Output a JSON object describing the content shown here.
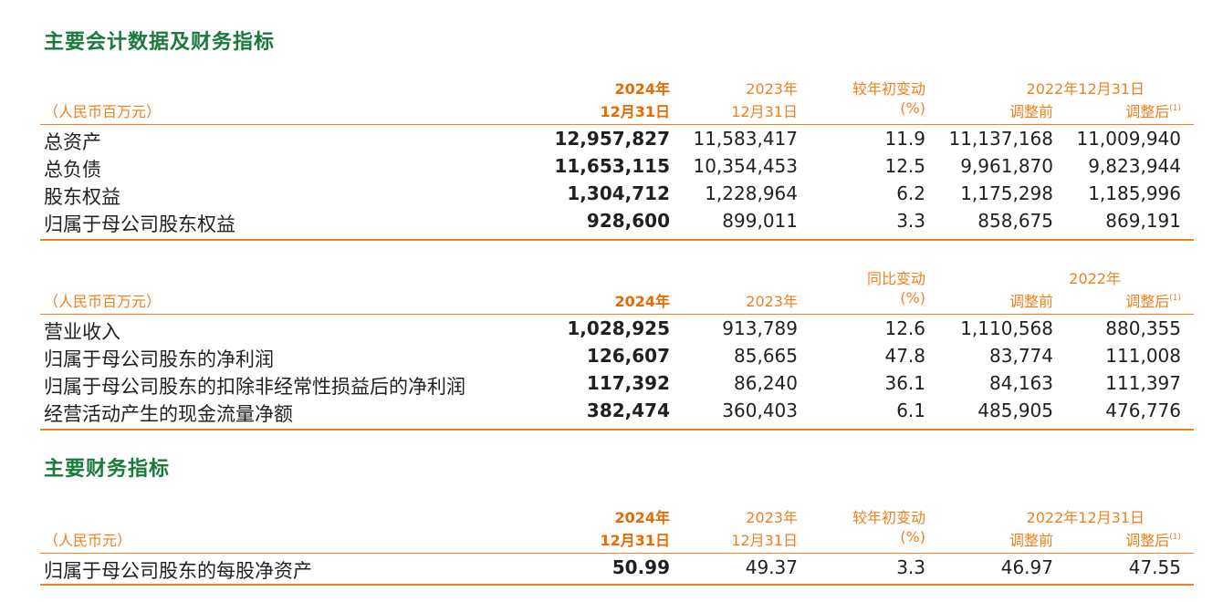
{
  "section1_title": "主要会计数据及财务指标",
  "section2_title": "主要财务指标",
  "table1": {
    "header_row1": {
      "c1": "2024年",
      "c2": "2023年",
      "c3": "较年初变动",
      "c45": "2022年12月31日"
    },
    "header_row2": {
      "unit": "（人民币百万元）",
      "c1": "12月31日",
      "c2": "12月31日",
      "c3": "(%)",
      "c4": "调整前",
      "c5": "调整后",
      "c5_sup": "(1)"
    },
    "rows": [
      {
        "label": "总资产",
        "v2024": "12,957,827",
        "v2023": "11,583,417",
        "change": "11.9",
        "before": "11,137,168",
        "after": "11,009,940"
      },
      {
        "label": "总负债",
        "v2024": "11,653,115",
        "v2023": "10,354,453",
        "change": "12.5",
        "before": "9,961,870",
        "after": "9,823,944"
      },
      {
        "label": "股东权益",
        "v2024": "1,304,712",
        "v2023": "1,228,964",
        "change": "6.2",
        "before": "1,175,298",
        "after": "1,185,996"
      },
      {
        "label": "归属于母公司股东权益",
        "v2024": "928,600",
        "v2023": "899,011",
        "change": "3.3",
        "before": "858,675",
        "after": "869,191"
      }
    ]
  },
  "table2": {
    "header_row1": {
      "c3": "同比变动",
      "c45": "2022年"
    },
    "header_row2": {
      "unit": "（人民币百万元）",
      "c1": "2024年",
      "c2": "2023年",
      "c3": "(%)",
      "c4": "调整前",
      "c5": "调整后",
      "c5_sup": "(1)"
    },
    "rows": [
      {
        "label": "营业收入",
        "v2024": "1,028,925",
        "v2023": "913,789",
        "change": "12.6",
        "before": "1,110,568",
        "after": "880,355"
      },
      {
        "label": "归属于母公司股东的净利润",
        "v2024": "126,607",
        "v2023": "85,665",
        "change": "47.8",
        "before": "83,774",
        "after": "111,008"
      },
      {
        "label": "归属于母公司股东的扣除非经常性损益后的净利润",
        "v2024": "117,392",
        "v2023": "86,240",
        "change": "36.1",
        "before": "84,163",
        "after": "111,397"
      },
      {
        "label": "经营活动产生的现金流量净额",
        "v2024": "382,474",
        "v2023": "360,403",
        "change": "6.1",
        "before": "485,905",
        "after": "476,776"
      }
    ]
  },
  "table3": {
    "header_row1": {
      "c1": "2024年",
      "c2": "2023年",
      "c3": "较年初变动",
      "c45": "2022年12月31日"
    },
    "header_row2": {
      "unit": "（人民币元）",
      "c1": "12月31日",
      "c2": "12月31日",
      "c3": "(%)",
      "c4": "调整前",
      "c5": "调整后",
      "c5_sup": "(1)"
    },
    "rows": [
      {
        "label": "归属于母公司股东的每股净资产",
        "v2024": "50.99",
        "v2023": "49.37",
        "change": "3.3",
        "before": "46.97",
        "after": "47.55"
      }
    ]
  }
}
